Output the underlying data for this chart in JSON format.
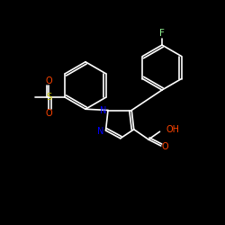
{
  "background_color": "#000000",
  "bond_color": "#ffffff",
  "atom_colors": {
    "F": "#90ee90",
    "N": "#0000ff",
    "O": "#ff4400",
    "S": "#cccc00",
    "C": "#ffffff",
    "H": "#ffffff"
  }
}
